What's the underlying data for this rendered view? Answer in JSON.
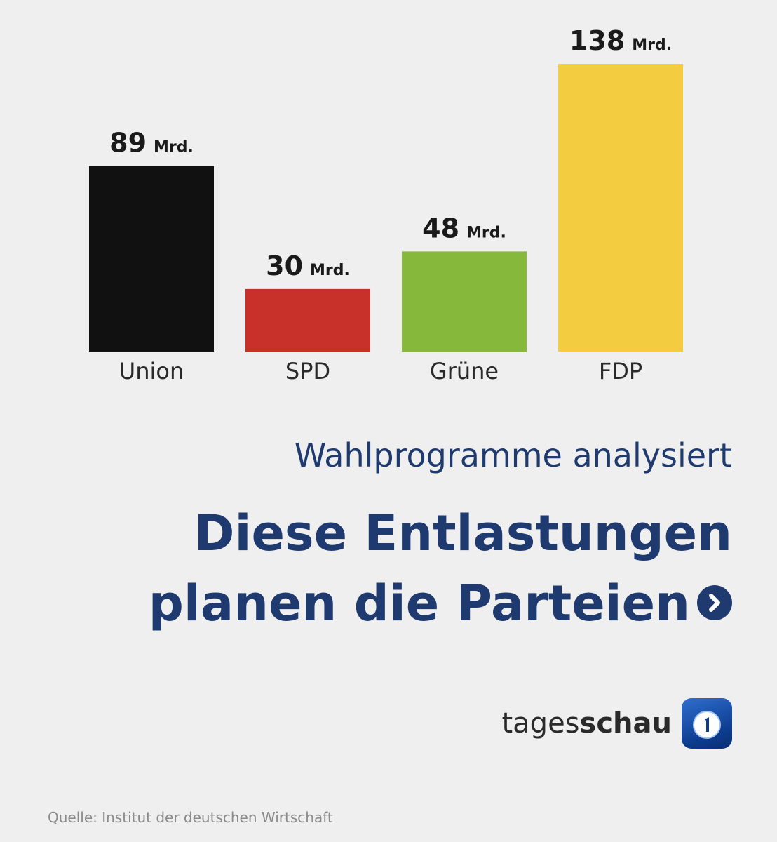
{
  "chart_data": {
    "type": "bar",
    "categories": [
      "Union",
      "SPD",
      "Grüne",
      "FDP"
    ],
    "values": [
      89,
      30,
      48,
      138
    ],
    "unit": "Mrd.",
    "colors": [
      "#111111",
      "#c8312a",
      "#86b93b",
      "#f4cc3f"
    ],
    "ylim": [
      0,
      138
    ],
    "grid": false
  },
  "subtitle": "Wahlprogramme analysiert",
  "headline": {
    "line1": "Diese Entlastungen",
    "line2": "planen die Parteien"
  },
  "brand": {
    "name_part1": "tages",
    "name_part2": "schau",
    "logo_icon": "ard-one-logo-icon"
  },
  "source": "Quelle: Institut der deutschen Wirtschaft",
  "arrow_icon": "chevron-right-icon"
}
